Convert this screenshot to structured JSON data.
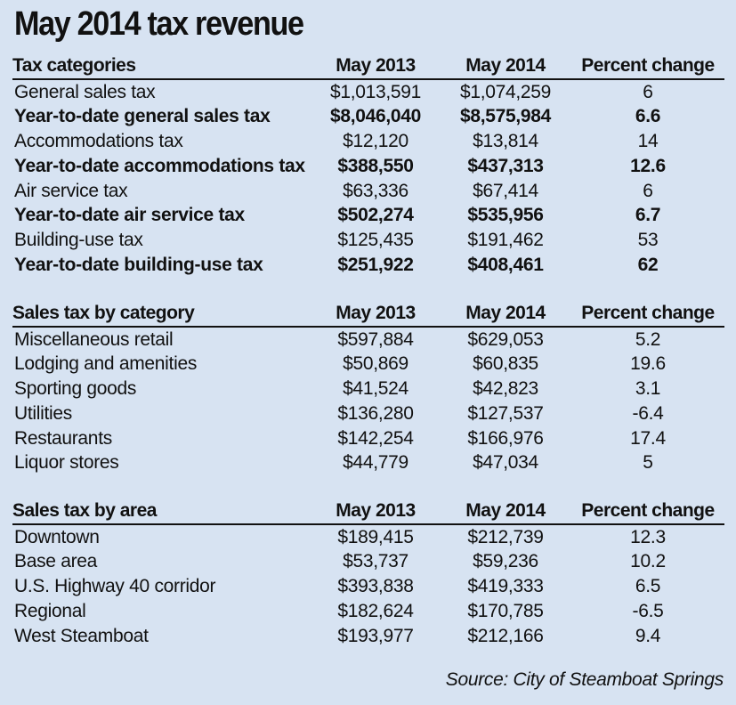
{
  "title": "May 2014 tax revenue",
  "source": "Source: City of Steamboat Springs",
  "chart_data": {
    "type": "table",
    "title": "May 2014 tax revenue",
    "tables": [
      {
        "headers": [
          "Tax categories",
          "May 2013",
          "May 2014",
          "Percent change"
        ],
        "rows": [
          {
            "cells": [
              "General sales tax",
              "$1,013,591",
              "$1,074,259",
              "6"
            ],
            "bold": false
          },
          {
            "cells": [
              "Year-to-date general sales tax",
              "$8,046,040",
              "$8,575,984",
              "6.6"
            ],
            "bold": true
          },
          {
            "cells": [
              "Accommodations tax",
              "$12,120",
              "$13,814",
              "14"
            ],
            "bold": false
          },
          {
            "cells": [
              "Year-to-date accommodations tax",
              "$388,550",
              "$437,313",
              "12.6"
            ],
            "bold": true
          },
          {
            "cells": [
              "Air service tax",
              "$63,336",
              "$67,414",
              "6"
            ],
            "bold": false
          },
          {
            "cells": [
              "Year-to-date air service tax",
              "$502,274",
              "$535,956",
              "6.7"
            ],
            "bold": true
          },
          {
            "cells": [
              "Building-use tax",
              "$125,435",
              "$191,462",
              "53"
            ],
            "bold": false
          },
          {
            "cells": [
              "Year-to-date building-use tax",
              "$251,922",
              "$408,461",
              "62"
            ],
            "bold": true
          }
        ]
      },
      {
        "headers": [
          "Sales tax by category",
          "May 2013",
          "May 2014",
          "Percent change"
        ],
        "rows": [
          {
            "cells": [
              "Miscellaneous retail",
              "$597,884",
              "$629,053",
              "5.2"
            ],
            "bold": false
          },
          {
            "cells": [
              "Lodging and amenities",
              "$50,869",
              "$60,835",
              "19.6"
            ],
            "bold": false
          },
          {
            "cells": [
              "Sporting goods",
              "$41,524",
              "$42,823",
              "3.1"
            ],
            "bold": false
          },
          {
            "cells": [
              "Utilities",
              "$136,280",
              "$127,537",
              "-6.4"
            ],
            "bold": false
          },
          {
            "cells": [
              "Restaurants",
              "$142,254",
              "$166,976",
              "17.4"
            ],
            "bold": false
          },
          {
            "cells": [
              "Liquor stores",
              "$44,779",
              "$47,034",
              "5"
            ],
            "bold": false
          }
        ]
      },
      {
        "headers": [
          "Sales tax by area",
          "May 2013",
          "May 2014",
          "Percent change"
        ],
        "rows": [
          {
            "cells": [
              "Downtown",
              "$189,415",
              "$212,739",
              "12.3"
            ],
            "bold": false
          },
          {
            "cells": [
              "Base area",
              "$53,737",
              "$59,236",
              "10.2"
            ],
            "bold": false
          },
          {
            "cells": [
              "U.S. Highway 40 corridor",
              "$393,838",
              "$419,333",
              "6.5"
            ],
            "bold": false
          },
          {
            "cells": [
              "Regional",
              "$182,624",
              "$170,785",
              "-6.5"
            ],
            "bold": false
          },
          {
            "cells": [
              "West Steamboat",
              "$193,977",
              "$212,166",
              "9.4"
            ],
            "bold": false
          }
        ]
      }
    ]
  },
  "colors": {
    "background": "#d7e3f2",
    "text": "#111111"
  }
}
